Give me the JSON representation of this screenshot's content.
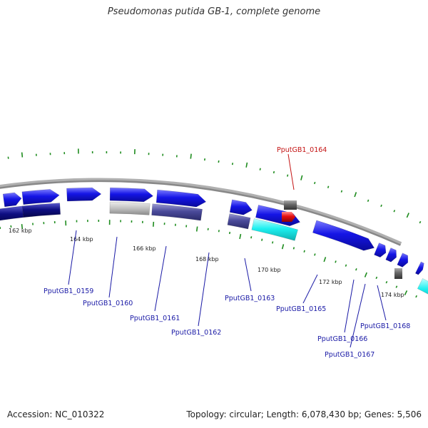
{
  "title": "Pseudomonas putida GB-1, complete genome",
  "footer": {
    "accession": "Accession: NC_010322",
    "topology": "Topology: circular; Length: 6,078,430 bp; Genes: 5,506"
  },
  "colors": {
    "gene_blue": "#1515e6",
    "gene_navy": "#0e0e82",
    "gene_purple": "#4a4a9a",
    "gene_gray": "#c4c4c4",
    "gene_cyan": "#1ef0f0",
    "gene_red": "#e60f0f",
    "gene_darkgray": "#666666",
    "tick_green": "#1e8c1e",
    "label_blue": "#1a1aa6",
    "label_red": "#c41414",
    "backbone": "#888888"
  },
  "axis": {
    "tick_labels": [
      "162 kbp",
      "164 kbp",
      "166 kbp",
      "168 kbp",
      "170 kbp",
      "172 kbp",
      "174 kbp"
    ]
  },
  "genes": [
    {
      "name": "PputGB1_0159",
      "highlight": false
    },
    {
      "name": "PputGB1_0160",
      "highlight": false
    },
    {
      "name": "PputGB1_0161",
      "highlight": false
    },
    {
      "name": "PputGB1_0162",
      "highlight": false
    },
    {
      "name": "PputGB1_0163",
      "highlight": false
    },
    {
      "name": "PputGB1_0164",
      "highlight": true
    },
    {
      "name": "PputGB1_0165",
      "highlight": false
    },
    {
      "name": "PputGB1_0166",
      "highlight": false
    },
    {
      "name": "PputGB1_0167",
      "highlight": false
    },
    {
      "name": "PputGB1_0168",
      "highlight": false
    }
  ]
}
